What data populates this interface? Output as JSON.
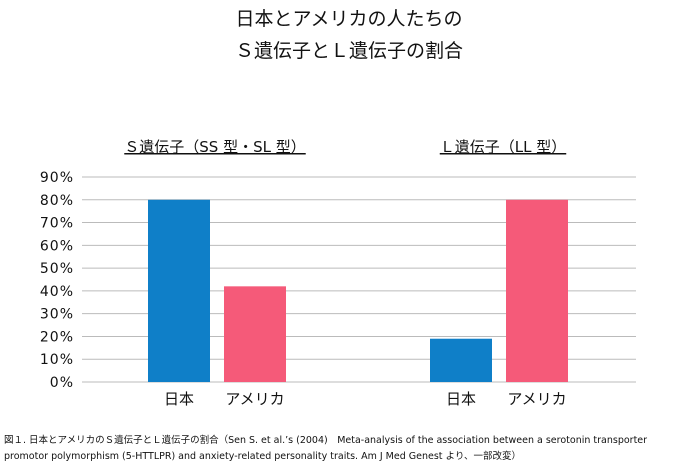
{
  "title_line1": "日本とアメリカの人たちの",
  "title_line2": "Ｓ遺伝子とＬ遺伝子の割合",
  "caption_line1": "図１. 日本とアメリカのＳ遺伝子とＬ遺伝子の割合（Sen S. et al.’s (2004)　Meta-analysis of the association between a serotonin transporter",
  "caption_line2": "promotor polymorphism (5-HTTLPR) and anxiety-related personality traits. Am J Med Genest より、一部改変）",
  "colors": {
    "japan": "#0f7fc8",
    "america": "#f55a79",
    "grid": "#bbbbbb"
  },
  "chart_data": {
    "type": "bar",
    "groups": [
      {
        "label": "Ｓ遺伝子（SS 型・SL 型）",
        "categories": [
          "日本",
          "アメリカ"
        ],
        "values": [
          80,
          42
        ]
      },
      {
        "label": "Ｌ遺伝子（LL 型）",
        "categories": [
          "日本",
          "アメリカ"
        ],
        "values": [
          19,
          80
        ]
      }
    ],
    "yticks": [
      "0%",
      "10%",
      "20%",
      "30%",
      "40%",
      "50%",
      "60%",
      "70%",
      "80%",
      "90%"
    ],
    "ylim": [
      0,
      90
    ],
    "grid": true
  }
}
